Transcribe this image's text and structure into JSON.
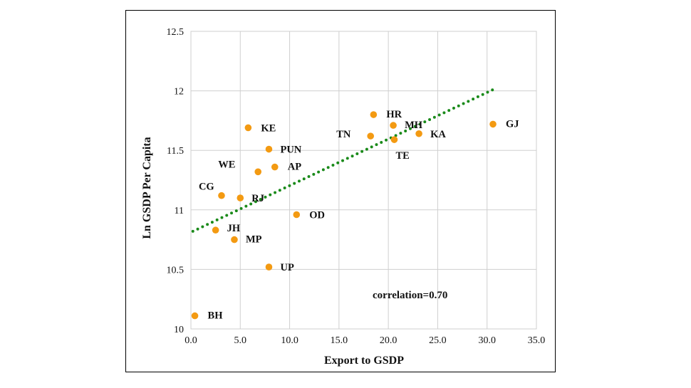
{
  "chart_data": {
    "type": "scatter",
    "xlabel": "Export to GSDP",
    "ylabel": "Ln GSDP Per Capita",
    "xlim": [
      0,
      35
    ],
    "ylim": [
      10,
      12.5
    ],
    "x_ticks": [
      "0.0",
      "5.0",
      "10.0",
      "15.0",
      "20.0",
      "25.0",
      "30.0",
      "35.0"
    ],
    "y_ticks": [
      "10",
      "10.5",
      "11",
      "11.5",
      "12",
      "12.5"
    ],
    "grid": true,
    "marker_color": "#f39a12",
    "trend_color": "#1a8a1a",
    "points": [
      {
        "label": "BH",
        "x": 0.4,
        "y": 10.11
      },
      {
        "label": "JH",
        "x": 2.5,
        "y": 10.83
      },
      {
        "label": "MP",
        "x": 4.4,
        "y": 10.75
      },
      {
        "label": "CG",
        "x": 3.1,
        "y": 11.12
      },
      {
        "label": "RJ",
        "x": 5.0,
        "y": 11.1
      },
      {
        "label": "WE",
        "x": 6.8,
        "y": 11.32
      },
      {
        "label": "KE",
        "x": 5.8,
        "y": 11.69
      },
      {
        "label": "PUN",
        "x": 7.9,
        "y": 11.51
      },
      {
        "label": "AP",
        "x": 8.5,
        "y": 11.36
      },
      {
        "label": "UP",
        "x": 7.9,
        "y": 10.52
      },
      {
        "label": "OD",
        "x": 10.7,
        "y": 10.96
      },
      {
        "label": "TN",
        "x": 18.2,
        "y": 11.62
      },
      {
        "label": "HR",
        "x": 18.5,
        "y": 11.8
      },
      {
        "label": "MH",
        "x": 20.5,
        "y": 11.71
      },
      {
        "label": "TE",
        "x": 20.6,
        "y": 11.59
      },
      {
        "label": "KA",
        "x": 23.1,
        "y": 11.64
      },
      {
        "label": "GJ",
        "x": 30.6,
        "y": 11.72
      }
    ],
    "trendline": {
      "x": [
        0.2,
        30.6
      ],
      "y": [
        10.82,
        12.01
      ]
    },
    "annotation": "correlation=0.70"
  }
}
